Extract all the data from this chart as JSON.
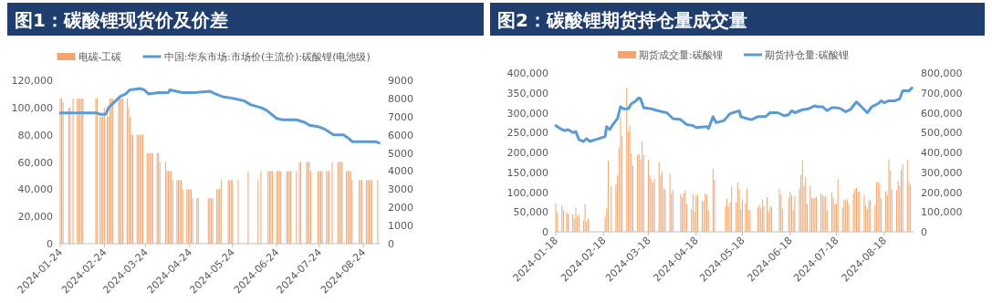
{
  "chart_data": [
    {
      "type": "bar",
      "title": "图1：碳酸锂现货价及价差",
      "legend": "top",
      "xlim": [
        "2024-01-24",
        "2024-09-05"
      ],
      "xticks": [
        "2024-01-24",
        "2024-02-24",
        "2024-03-24",
        "2024-04-24",
        "2024-05-24",
        "2024-06-24",
        "2024-07-24",
        "2024-08-24"
      ],
      "ylim": [
        0,
        120000
      ],
      "yticks": [
        0,
        {
          "value": 20000,
          "label": "20,000"
        },
        {
          "value": 40000,
          "label": "40,000"
        },
        {
          "value": 60000,
          "label": "60,000"
        },
        {
          "value": 80000,
          "label": "80,000"
        },
        {
          "value": 100000,
          "label": "100,000"
        },
        {
          "value": 120000,
          "label": "120,000"
        }
      ],
      "y2lim": [
        0,
        9000
      ],
      "y2ticks": [
        0,
        1000,
        2000,
        3000,
        4000,
        5000,
        6000,
        7000,
        8000,
        9000
      ],
      "series": [
        {
          "name": "电碳-工碳",
          "axis": "y2",
          "color": "#f4a46c",
          "x": [
            "2024-01-24",
            "2024-01-25",
            "2024-01-26",
            "2024-01-30",
            "2024-01-31",
            "2024-02-02",
            "2024-02-05",
            "2024-02-06",
            "2024-02-07",
            "2024-02-08",
            "2024-02-09",
            "2024-02-18",
            "2024-02-19",
            "2024-02-21",
            "2024-02-22",
            "2024-02-23",
            "2024-02-24",
            "2024-02-26",
            "2024-02-27",
            "2024-02-28",
            "2024-02-29",
            "2024-03-01",
            "2024-03-05",
            "2024-03-06",
            "2024-03-07",
            "2024-03-08",
            "2024-03-11",
            "2024-03-12",
            "2024-03-13",
            "2024-03-14",
            "2024-03-15",
            "2024-03-18",
            "2024-03-19",
            "2024-03-20",
            "2024-03-21",
            "2024-03-22",
            "2024-03-25",
            "2024-03-26",
            "2024-03-27",
            "2024-03-28",
            "2024-03-29",
            "2024-04-01",
            "2024-04-02",
            "2024-04-03",
            "2024-04-07",
            "2024-04-08",
            "2024-04-09",
            "2024-04-10",
            "2024-04-11",
            "2024-04-12",
            "2024-04-15",
            "2024-04-16",
            "2024-04-17",
            "2024-04-18",
            "2024-04-19",
            "2024-04-22",
            "2024-04-23",
            "2024-04-24",
            "2024-04-25",
            "2024-04-26",
            "2024-04-29",
            "2024-04-30",
            "2024-05-07",
            "2024-05-08",
            "2024-05-09",
            "2024-05-10",
            "2024-05-13",
            "2024-05-14",
            "2024-05-15",
            "2024-05-16",
            "2024-05-21",
            "2024-05-22",
            "2024-05-23",
            "2024-05-24",
            "2024-05-28",
            "2024-06-04",
            "2024-06-11",
            "2024-06-13",
            "2024-06-18",
            "2024-06-19",
            "2024-06-20",
            "2024-06-21",
            "2024-06-24",
            "2024-06-25",
            "2024-06-26",
            "2024-06-27",
            "2024-07-01",
            "2024-07-02",
            "2024-07-03",
            "2024-07-04",
            "2024-07-08",
            "2024-07-10",
            "2024-07-11",
            "2024-07-15",
            "2024-07-16",
            "2024-07-17",
            "2024-07-18",
            "2024-07-23",
            "2024-07-24",
            "2024-07-25",
            "2024-07-26",
            "2024-07-29",
            "2024-07-30",
            "2024-07-31",
            "2024-08-02",
            "2024-08-06",
            "2024-08-07",
            "2024-08-08",
            "2024-08-09",
            "2024-08-12",
            "2024-08-13",
            "2024-08-14",
            "2024-08-15",
            "2024-08-16",
            "2024-08-21",
            "2024-08-22",
            "2024-08-23",
            "2024-08-26",
            "2024-08-27",
            "2024-08-28",
            "2024-08-29",
            "2024-08-30",
            "2024-09-03"
          ],
          "values": [
            8000,
            8000,
            7800,
            7500,
            7500,
            8000,
            8000,
            8000,
            8000,
            8000,
            8000,
            8000,
            8000,
            7000,
            7000,
            7000,
            7500,
            7000,
            7000,
            8000,
            8000,
            8000,
            8000,
            8000,
            8000,
            8000,
            8000,
            7500,
            7000,
            6000,
            6000,
            6000,
            6000,
            6000,
            6000,
            6000,
            5000,
            5000,
            5000,
            5000,
            5000,
            5000,
            5000,
            4500,
            4500,
            4000,
            4000,
            4000,
            4000,
            3500,
            3500,
            3500,
            3500,
            3500,
            3000,
            3000,
            3000,
            3000,
            3000,
            2500,
            2500,
            2500,
            2500,
            2500,
            2500,
            2500,
            3000,
            3000,
            3000,
            3500,
            3500,
            3500,
            3500,
            3500,
            3500,
            4000,
            3500,
            4000,
            4000,
            4000,
            4000,
            4000,
            4000,
            4000,
            4000,
            4000,
            4000,
            4000,
            4000,
            4000,
            4000,
            4500,
            4500,
            4500,
            4500,
            4500,
            4000,
            4000,
            4000,
            4000,
            4000,
            4000,
            4000,
            4000,
            4500,
            4500,
            4500,
            4500,
            4500,
            4000,
            4000,
            4000,
            4000,
            3500,
            3500,
            3500,
            3500,
            3500,
            3500,
            3500,
            3500,
            3500,
            3500
          ]
        },
        {
          "name": "中国:华东市场:市场价(主流价):碳酸锂(电池级)",
          "type": "line",
          "color": "#5b9bd5",
          "x": [
            "2024-01-24",
            "2024-02-19",
            "2024-02-21",
            "2024-02-25",
            "2024-02-27",
            "2024-03-02",
            "2024-03-06",
            "2024-03-10",
            "2024-03-13",
            "2024-03-20",
            "2024-03-23",
            "2024-03-26",
            "2024-04-02",
            "2024-04-09",
            "2024-04-10",
            "2024-04-19",
            "2024-04-27",
            "2024-05-08",
            "2024-05-12",
            "2024-05-17",
            "2024-05-23",
            "2024-06-01",
            "2024-06-06",
            "2024-06-13",
            "2024-06-17",
            "2024-06-24",
            "2024-06-28",
            "2024-07-08",
            "2024-07-14",
            "2024-07-17",
            "2024-07-23",
            "2024-07-28",
            "2024-07-31",
            "2024-08-03",
            "2024-08-10",
            "2024-08-14",
            "2024-08-16",
            "2024-08-29",
            "2024-09-01",
            "2024-09-04"
          ],
          "values": [
            96000,
            96000,
            95000,
            95000,
            100000,
            104000,
            108000,
            110000,
            113000,
            114000,
            113000,
            110000,
            111000,
            111000,
            113000,
            111000,
            111000,
            112000,
            110000,
            108000,
            107000,
            105000,
            102000,
            100000,
            98000,
            92000,
            91000,
            91000,
            89000,
            87000,
            86000,
            84000,
            82000,
            80000,
            80000,
            77000,
            75000,
            75000,
            75000,
            74000
          ]
        }
      ]
    },
    {
      "type": "bar",
      "title": "图2：碳酸锂期货持仓量成交量",
      "legend": "top",
      "xlim": [
        "2024-01-18",
        "2024-09-06"
      ],
      "xticks": [
        "2024-01-18",
        "2024-02-18",
        "2024-03-18",
        "2024-04-18",
        "2024-05-18",
        "2024-06-18",
        "2024-07-18",
        "2024-08-18"
      ],
      "ylim": [
        0,
        400000
      ],
      "yticks": [
        0,
        {
          "value": 50000,
          "label": "50,000"
        },
        {
          "value": 100000,
          "label": "100,000"
        },
        {
          "value": 150000,
          "label": "150,000"
        },
        {
          "value": 200000,
          "label": "200,000"
        },
        {
          "value": 250000,
          "label": "250,000"
        },
        {
          "value": 300000,
          "label": "300,000"
        },
        {
          "value": 350000,
          "label": "350,000"
        },
        {
          "value": 400000,
          "label": "400,000"
        }
      ],
      "y2lim": [
        0,
        800000
      ],
      "y2ticks": [
        0,
        {
          "value": 100000,
          "label": "100,000"
        },
        {
          "value": 200000,
          "label": "200,000"
        },
        {
          "value": 300000,
          "label": "300,000"
        },
        {
          "value": 400000,
          "label": "400,000"
        },
        {
          "value": 500000,
          "label": "500,000"
        },
        {
          "value": 600000,
          "label": "600,000"
        },
        {
          "value": 700000,
          "label": "700,000"
        },
        {
          "value": 800000,
          "label": "800,000"
        }
      ],
      "series": [
        {
          "name": "期货成交量:碳酸锂",
          "color": "#f4a46c",
          "x": [
            "2024-01-18",
            "2024-01-19",
            "2024-01-22",
            "2024-01-23",
            "2024-01-25",
            "2024-01-26",
            "2024-01-29",
            "2024-01-30",
            "2024-01-31",
            "2024-02-01",
            "2024-02-02",
            "2024-02-05",
            "2024-02-06",
            "2024-02-07",
            "2024-02-08",
            "2024-02-19",
            "2024-02-20",
            "2024-02-21",
            "2024-02-23",
            "2024-02-26",
            "2024-02-27",
            "2024-02-28",
            "2024-02-29",
            "2024-03-01",
            "2024-03-04",
            "2024-03-05",
            "2024-03-06",
            "2024-03-07",
            "2024-03-08",
            "2024-03-11",
            "2024-03-12",
            "2024-03-13",
            "2024-03-14",
            "2024-03-15",
            "2024-03-18",
            "2024-03-19",
            "2024-03-20",
            "2024-03-21",
            "2024-03-22",
            "2024-03-25",
            "2024-03-26",
            "2024-03-27",
            "2024-03-28",
            "2024-03-29",
            "2024-04-01",
            "2024-04-02",
            "2024-04-03",
            "2024-04-08",
            "2024-04-09",
            "2024-04-10",
            "2024-04-11",
            "2024-04-12",
            "2024-04-15",
            "2024-04-16",
            "2024-04-17",
            "2024-04-18",
            "2024-04-19",
            "2024-04-22",
            "2024-04-23",
            "2024-04-24",
            "2024-04-25",
            "2024-04-26",
            "2024-04-29",
            "2024-04-30",
            "2024-05-07",
            "2024-05-08",
            "2024-05-09",
            "2024-05-10",
            "2024-05-11",
            "2024-05-14",
            "2024-05-15",
            "2024-05-16",
            "2024-05-17",
            "2024-05-18",
            "2024-05-20",
            "2024-05-21",
            "2024-05-22",
            "2024-05-23",
            "2024-05-28",
            "2024-05-29",
            "2024-05-30",
            "2024-05-31",
            "2024-06-01",
            "2024-06-03",
            "2024-06-04",
            "2024-06-05",
            "2024-06-06",
            "2024-06-11",
            "2024-06-12",
            "2024-06-13",
            "2024-06-17",
            "2024-06-18",
            "2024-06-19",
            "2024-06-20",
            "2024-06-21",
            "2024-06-24",
            "2024-06-25",
            "2024-06-26",
            "2024-06-27",
            "2024-06-28",
            "2024-06-29",
            "2024-07-01",
            "2024-07-02",
            "2024-07-03",
            "2024-07-04",
            "2024-07-05",
            "2024-07-08",
            "2024-07-09",
            "2024-07-10",
            "2024-07-11",
            "2024-07-12",
            "2024-07-15",
            "2024-07-16",
            "2024-07-17",
            "2024-07-18",
            "2024-07-19",
            "2024-07-22",
            "2024-07-23",
            "2024-07-24",
            "2024-07-25",
            "2024-07-26",
            "2024-07-29",
            "2024-07-30",
            "2024-07-31",
            "2024-08-01",
            "2024-08-02",
            "2024-08-05",
            "2024-08-06",
            "2024-08-07",
            "2024-08-08",
            "2024-08-09",
            "2024-08-12",
            "2024-08-13",
            "2024-08-14",
            "2024-08-15",
            "2024-08-16",
            "2024-08-19",
            "2024-08-20",
            "2024-08-21",
            "2024-08-22",
            "2024-08-23",
            "2024-08-26",
            "2024-08-27",
            "2024-08-28",
            "2024-08-29",
            "2024-08-30",
            "2024-09-02",
            "2024-09-03",
            "2024-09-04"
          ],
          "values": [
            72000,
            49000,
            65000,
            55000,
            50000,
            46000,
            44000,
            34000,
            61000,
            40000,
            42000,
            28000,
            69000,
            26000,
            34000,
            38000,
            59000,
            179000,
            116000,
            119000,
            141000,
            212000,
            289000,
            241000,
            363000,
            253000,
            268000,
            198000,
            166000,
            193000,
            197000,
            182000,
            229000,
            193000,
            182000,
            143000,
            132000,
            124000,
            133000,
            176000,
            142000,
            152000,
            109000,
            107000,
            146000,
            97000,
            105000,
            95000,
            87000,
            97000,
            105000,
            70000,
            57000,
            95000,
            51000,
            93000,
            92000,
            77000,
            78000,
            97000,
            93000,
            54000,
            159000,
            132000,
            64000,
            84000,
            63000,
            74000,
            115000,
            74000,
            124000,
            105000,
            57000,
            82000,
            72000,
            109000,
            54000,
            55000,
            63000,
            68000,
            59000,
            82000,
            64000,
            87000,
            51000,
            63000,
            63000,
            109000,
            93000,
            59000,
            86000,
            101000,
            92000,
            55000,
            90000,
            109000,
            143000,
            179000,
            116000,
            138000,
            70000,
            116000,
            86000,
            84000,
            86000,
            87000,
            97000,
            92000,
            87000,
            90000,
            54000,
            99000,
            86000,
            70000,
            72000,
            132000,
            61000,
            82000,
            78000,
            82000,
            69000,
            97000,
            109000,
            111000,
            101000,
            101000,
            93000,
            67000,
            57000,
            78000,
            80000,
            67000,
            124000,
            126000,
            120000,
            84000,
            103000,
            93000,
            182000,
            155000,
            107000,
            105000,
            128000,
            115000,
            156000,
            170000,
            182000,
            124000,
            119000
          ]
        },
        {
          "name": "期货持仓量:碳酸锂",
          "type": "line",
          "axis": "y2",
          "color": "#5b9bd5",
          "x": [
            "2024-01-18",
            "2024-01-22",
            "2024-01-24",
            "2024-01-26",
            "2024-01-29",
            "2024-01-31",
            "2024-02-02",
            "2024-02-05",
            "2024-02-07",
            "2024-02-09",
            "2024-02-13",
            "2024-02-19",
            "2024-02-20",
            "2024-02-22",
            "2024-02-24",
            "2024-02-27",
            "2024-02-29",
            "2024-03-02",
            "2024-03-05",
            "2024-03-07",
            "2024-03-10",
            "2024-03-12",
            "2024-03-13",
            "2024-03-15",
            "2024-03-20",
            "2024-03-22",
            "2024-03-24",
            "2024-03-27",
            "2024-03-30",
            "2024-04-03",
            "2024-04-08",
            "2024-04-12",
            "2024-04-16",
            "2024-04-18",
            "2024-04-25",
            "2024-04-26",
            "2024-04-29",
            "2024-05-01",
            "2024-05-06",
            "2024-05-10",
            "2024-05-12",
            "2024-05-16",
            "2024-05-17",
            "2024-05-21",
            "2024-05-24",
            "2024-05-28",
            "2024-06-02",
            "2024-06-05",
            "2024-06-10",
            "2024-06-14",
            "2024-06-17",
            "2024-06-19",
            "2024-06-21",
            "2024-06-26",
            "2024-06-30",
            "2024-07-04",
            "2024-07-06",
            "2024-07-09",
            "2024-07-12",
            "2024-07-15",
            "2024-07-18",
            "2024-07-21",
            "2024-07-24",
            "2024-07-27",
            "2024-07-31",
            "2024-08-02",
            "2024-08-07",
            "2024-08-10",
            "2024-08-14",
            "2024-08-16",
            "2024-08-18",
            "2024-08-21",
            "2024-08-25",
            "2024-08-28",
            "2024-08-30",
            "2024-09-03",
            "2024-09-05"
          ],
          "values": [
            535000,
            515000,
            510000,
            515000,
            500000,
            505000,
            465000,
            455000,
            470000,
            455000,
            465000,
            480000,
            530000,
            515000,
            540000,
            570000,
            630000,
            620000,
            620000,
            645000,
            660000,
            675000,
            670000,
            625000,
            620000,
            615000,
            610000,
            605000,
            600000,
            570000,
            565000,
            540000,
            535000,
            525000,
            530000,
            520000,
            580000,
            550000,
            560000,
            595000,
            600000,
            610000,
            580000,
            570000,
            565000,
            580000,
            580000,
            600000,
            600000,
            585000,
            590000,
            610000,
            600000,
            615000,
            620000,
            635000,
            630000,
            630000,
            610000,
            625000,
            625000,
            620000,
            605000,
            615000,
            655000,
            640000,
            600000,
            630000,
            645000,
            660000,
            650000,
            660000,
            660000,
            670000,
            710000,
            710000,
            725000
          ]
        }
      ]
    }
  ]
}
